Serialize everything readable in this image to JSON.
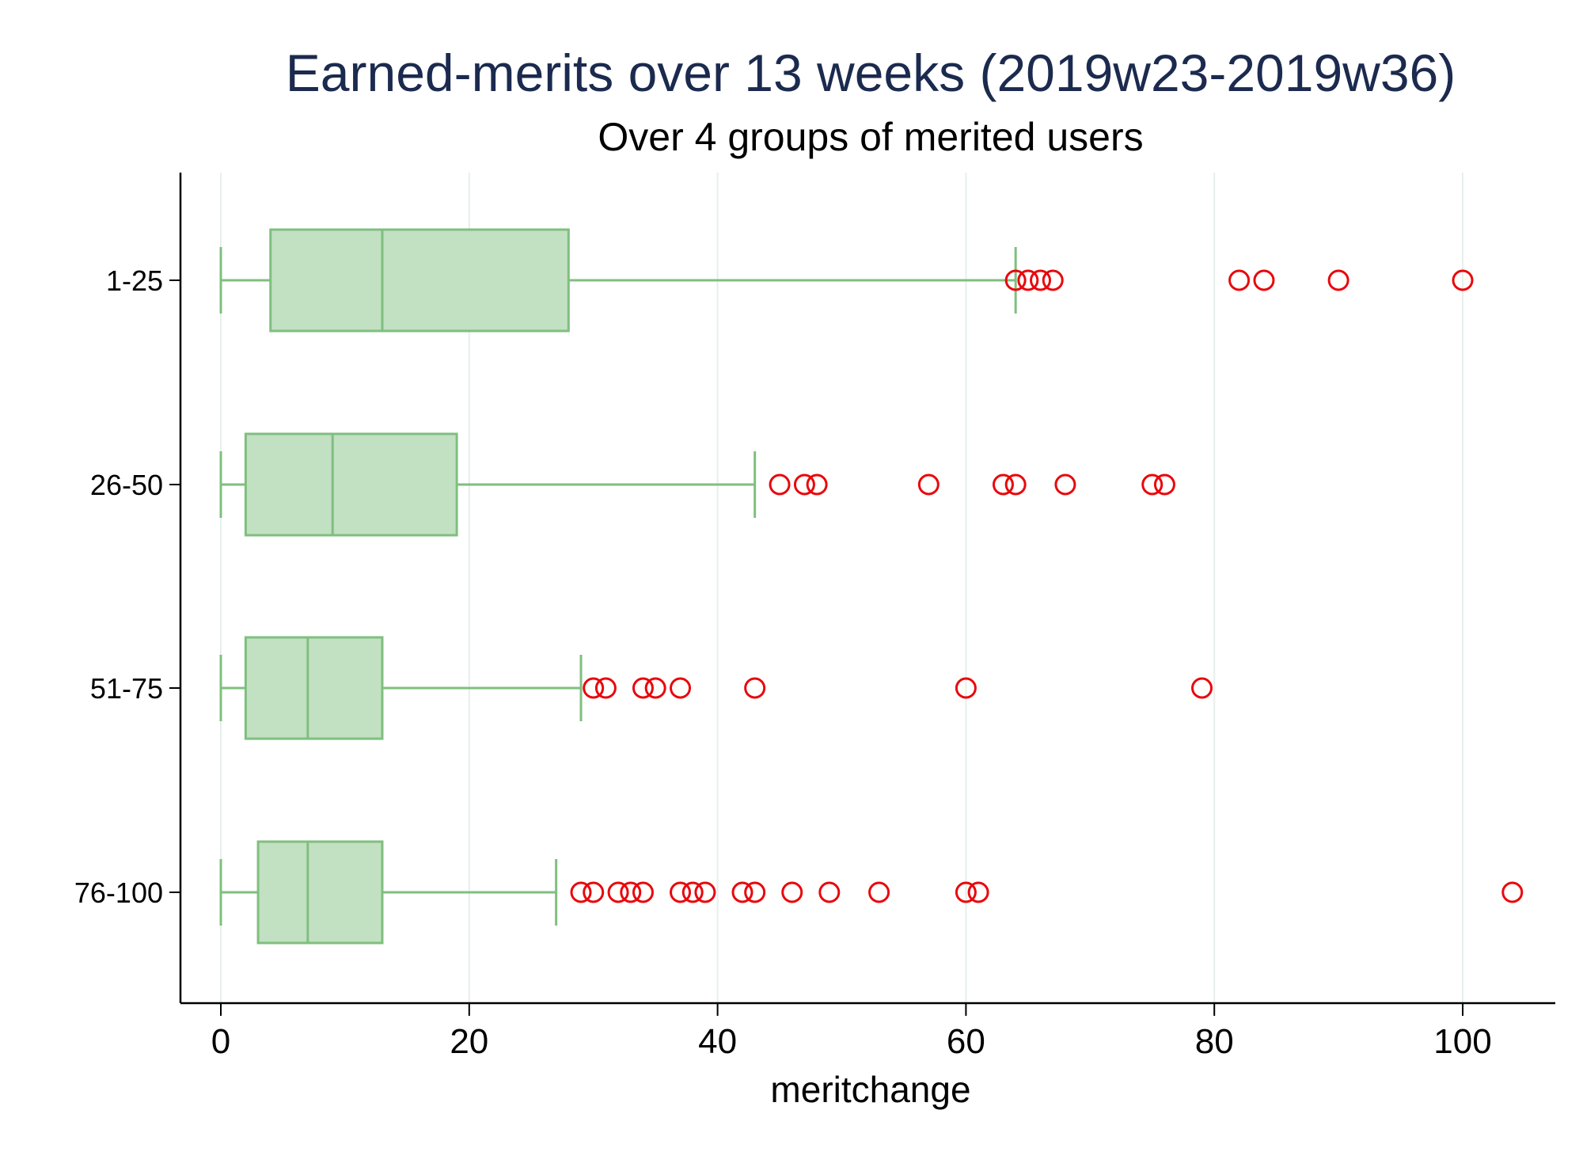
{
  "chart_data": {
    "type": "boxplot",
    "title": "Earned-merits over 13 weeks (2019w23-2019w36)",
    "subtitle": "Over 4 groups of merited users",
    "xlabel": "meritchange",
    "xlim": [
      -3,
      107
    ],
    "xticks": [
      0,
      20,
      40,
      60,
      80,
      100
    ],
    "grid": true,
    "orientation": "horizontal",
    "colors": {
      "box_fill": "#c2e0c2",
      "box_stroke": "#7fbf7f",
      "outlier": "#e8080c",
      "grid": "#e6efec",
      "title": "#1b2a4e"
    },
    "categories": [
      "1-25",
      "26-50",
      "51-75",
      "76-100"
    ],
    "series": [
      {
        "category": "1-25",
        "whisker_low": 0,
        "q1": 4,
        "median": 13,
        "q3": 28,
        "whisker_high": 64,
        "outliers": [
          64,
          65,
          66,
          67,
          82,
          84,
          90,
          100
        ]
      },
      {
        "category": "26-50",
        "whisker_low": 0,
        "q1": 2,
        "median": 9,
        "q3": 19,
        "whisker_high": 43,
        "outliers": [
          45,
          47,
          48,
          57,
          63,
          64,
          68,
          75,
          76
        ]
      },
      {
        "category": "51-75",
        "whisker_low": 0,
        "q1": 2,
        "median": 7,
        "q3": 13,
        "whisker_high": 29,
        "outliers": [
          30,
          31,
          34,
          35,
          37,
          43,
          60,
          79
        ]
      },
      {
        "category": "76-100",
        "whisker_low": 0,
        "q1": 3,
        "median": 7,
        "q3": 13,
        "whisker_high": 27,
        "outliers": [
          29,
          30,
          32,
          33,
          34,
          37,
          38,
          39,
          42,
          43,
          46,
          49,
          53,
          60,
          61,
          104
        ]
      }
    ]
  }
}
